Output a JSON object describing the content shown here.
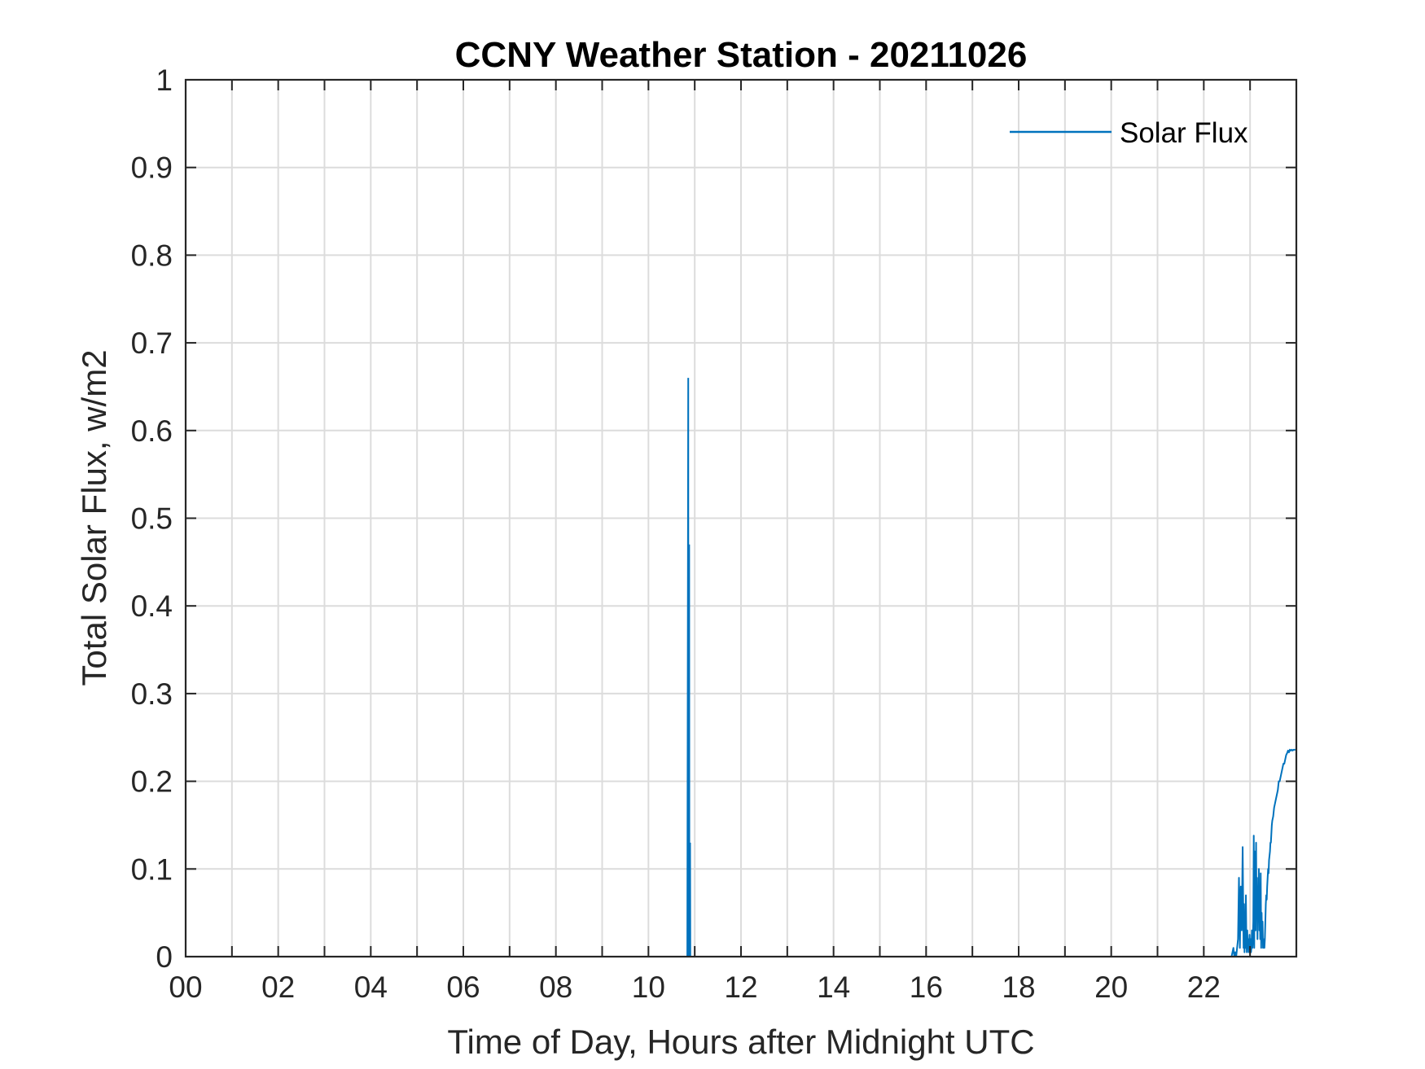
{
  "chart_data": {
    "type": "line",
    "title": "CCNY Weather Station - 20211026",
    "xlabel": "Time of Day, Hours after Midnight UTC",
    "ylabel": "Total Solar Flux, w/m2",
    "xlim": [
      0,
      24
    ],
    "ylim": [
      0,
      1
    ],
    "grid": true,
    "x_ticks": [
      0,
      2,
      4,
      6,
      8,
      10,
      12,
      14,
      16,
      18,
      20,
      22
    ],
    "x_tick_labels": [
      "00",
      "02",
      "04",
      "06",
      "08",
      "10",
      "12",
      "14",
      "16",
      "18",
      "20",
      "22"
    ],
    "x_minor_ticks": [
      1,
      3,
      5,
      7,
      9,
      11,
      13,
      15,
      17,
      19,
      21,
      23
    ],
    "y_ticks": [
      0,
      0.1,
      0.2,
      0.3,
      0.4,
      0.5,
      0.6,
      0.7,
      0.8,
      0.9,
      1
    ],
    "y_tick_labels": [
      "0",
      "0.1",
      "0.2",
      "0.3",
      "0.4",
      "0.5",
      "0.6",
      "0.7",
      "0.8",
      "0.9",
      "1"
    ],
    "legend_position": "top-right",
    "series": [
      {
        "name": "Solar Flux",
        "color": "#0072BD",
        "x": [
          21.8,
          22.6,
          22.64,
          22.66,
          22.68,
          22.7,
          22.72,
          22.74,
          22.76,
          22.78,
          22.8,
          22.82,
          22.84,
          22.86,
          22.87,
          22.88,
          22.89,
          22.9,
          22.91,
          22.92,
          22.93,
          22.94,
          22.95,
          22.96,
          22.97,
          22.98,
          22.99,
          23.0,
          23.01,
          23.02,
          23.03,
          23.04,
          23.05,
          23.06,
          23.07,
          23.08,
          23.09,
          23.1,
          23.11,
          23.12,
          23.13,
          23.14,
          23.15,
          23.16,
          23.17,
          23.18,
          23.19,
          23.2,
          23.21,
          23.22,
          23.23,
          23.24,
          23.25,
          23.26,
          23.27,
          23.28,
          23.29,
          23.3,
          23.31,
          23.32,
          23.33,
          23.34,
          23.35,
          23.36,
          23.37,
          23.38,
          23.39,
          23.4,
          23.41,
          23.42,
          23.43,
          23.44,
          23.45,
          23.46,
          23.47,
          23.48,
          23.5,
          23.52,
          23.54,
          23.56,
          23.58,
          23.6,
          23.62,
          23.64,
          23.66,
          23.68,
          23.7,
          23.72,
          23.74,
          23.76,
          23.78,
          23.8,
          23.82,
          23.84,
          23.86,
          23.88,
          23.9,
          23.92,
          23.94,
          23.96,
          23.98
        ],
        "y": [
          0,
          0,
          0.01,
          0,
          0.005,
          0,
          0.01,
          0.02,
          0.09,
          0.01,
          0.08,
          0.03,
          0.125,
          0.01,
          0.06,
          0.005,
          0.04,
          0.01,
          0.07,
          0.02,
          0.005,
          0.03,
          0.01,
          0.02,
          0.005,
          0.015,
          0.025,
          0.01,
          0.02,
          0.005,
          0.01,
          0.03,
          0.01,
          0.02,
          0.04,
          0.138,
          0.01,
          0.12,
          0.07,
          0.03,
          0.13,
          0.05,
          0.09,
          0.02,
          0.08,
          0.04,
          0.1,
          0.03,
          0.06,
          0.02,
          0.095,
          0.01,
          0.05,
          0.02,
          0.04,
          0.01,
          0.02,
          0.015,
          0.01,
          0.02,
          0.04,
          0.06,
          0.07,
          0.065,
          0.08,
          0.09,
          0.1,
          0.095,
          0.11,
          0.115,
          0.12,
          0.13,
          0.13,
          0.14,
          0.15,
          0.155,
          0.16,
          0.17,
          0.175,
          0.18,
          0.185,
          0.19,
          0.2,
          0.2,
          0.205,
          0.21,
          0.215,
          0.22,
          0.22,
          0.225,
          0.23,
          0.232,
          0.235,
          0.233,
          0.236,
          0.235,
          0.236,
          0.235,
          0.236,
          0.236,
          0.236
        ],
        "spike_segment": {
          "x": [
            10.84,
            10.86,
            10.865,
            10.88,
            10.885,
            10.9,
            10.905
          ],
          "y": [
            0,
            0.66,
            0,
            0.47,
            0,
            0.13,
            0
          ]
        }
      }
    ]
  }
}
